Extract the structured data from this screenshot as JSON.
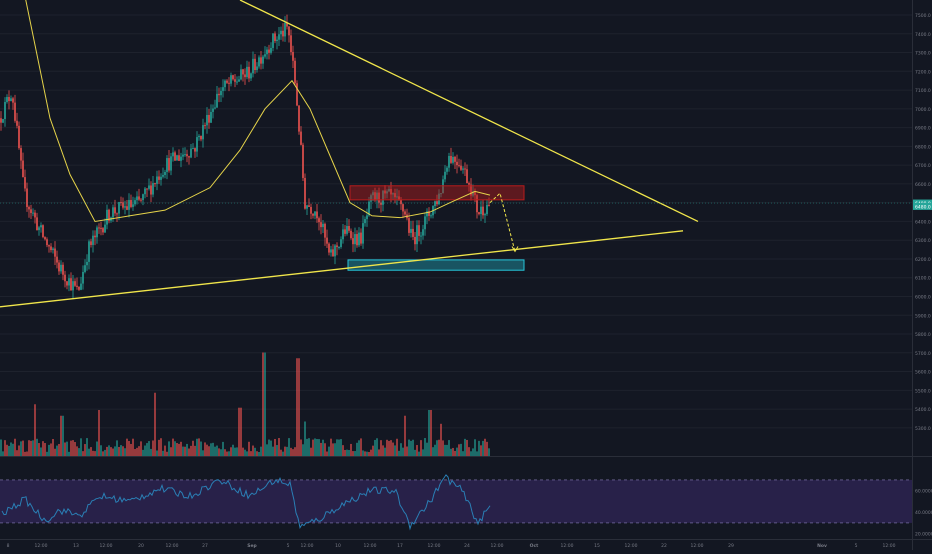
{
  "chart_data": [
    {
      "type": "candlestick",
      "title": "",
      "ylim": [
        5150,
        7580
      ],
      "y_ticks": [
        "7500.0",
        "7400.0",
        "7300.0",
        "7200.0",
        "7100.0",
        "7000.0",
        "6900.0",
        "6800.0",
        "6700.0",
        "6600.0",
        "6500.0",
        "6400.0",
        "6300.0",
        "6200.0",
        "6100.0",
        "6000.0",
        "5900.0",
        "5800.0",
        "5700.0",
        "5600.0",
        "5500.0",
        "5400.0",
        "5300.0"
      ],
      "y_tick_values": [
        7500,
        7400,
        7300,
        7200,
        7100,
        7000,
        6900,
        6800,
        6700,
        6600,
        6500,
        6400,
        6300,
        6200,
        6100,
        6000,
        5900,
        5800,
        5700,
        5600,
        5500,
        5400,
        5300
      ],
      "x_ticks": [
        "8",
        "12:00",
        "13",
        "12:00",
        "20",
        "12:00",
        "27",
        "Sep",
        "5",
        "12:00",
        "10",
        "12:00",
        "17",
        "12:00",
        "24",
        "12:00",
        "Oct",
        "12:00",
        "15",
        "12:00",
        "22",
        "12:00",
        "29",
        "Nov",
        "5",
        "12:00"
      ],
      "price_labels": [
        "6498.0",
        "6480.0"
      ],
      "price_key_points": [
        {
          "x": 0,
          "price": 6950
        },
        {
          "x": 12,
          "price": 7100
        },
        {
          "x": 24,
          "price": 6550
        },
        {
          "x": 40,
          "price": 6350
        },
        {
          "x": 60,
          "price": 6150
        },
        {
          "x": 78,
          "price": 6020
        },
        {
          "x": 88,
          "price": 6250
        },
        {
          "x": 110,
          "price": 6450
        },
        {
          "x": 140,
          "price": 6500
        },
        {
          "x": 165,
          "price": 6700
        },
        {
          "x": 195,
          "price": 6800
        },
        {
          "x": 220,
          "price": 7100
        },
        {
          "x": 250,
          "price": 7200
        },
        {
          "x": 270,
          "price": 7350
        },
        {
          "x": 288,
          "price": 7430
        },
        {
          "x": 296,
          "price": 7100
        },
        {
          "x": 305,
          "price": 6500
        },
        {
          "x": 318,
          "price": 6450
        },
        {
          "x": 330,
          "price": 6200
        },
        {
          "x": 345,
          "price": 6350
        },
        {
          "x": 360,
          "price": 6300
        },
        {
          "x": 372,
          "price": 6520
        },
        {
          "x": 390,
          "price": 6530
        },
        {
          "x": 405,
          "price": 6450
        },
        {
          "x": 412,
          "price": 6300
        },
        {
          "x": 425,
          "price": 6400
        },
        {
          "x": 440,
          "price": 6550
        },
        {
          "x": 448,
          "price": 6750
        },
        {
          "x": 460,
          "price": 6720
        },
        {
          "x": 470,
          "price": 6600
        },
        {
          "x": 478,
          "price": 6450
        },
        {
          "x": 490,
          "price": 6500
        }
      ],
      "ma_points": [
        {
          "x": 25,
          "price": 7600
        },
        {
          "x": 50,
          "price": 6950
        },
        {
          "x": 70,
          "price": 6650
        },
        {
          "x": 95,
          "price": 6400
        },
        {
          "x": 130,
          "price": 6430
        },
        {
          "x": 165,
          "price": 6460
        },
        {
          "x": 210,
          "price": 6580
        },
        {
          "x": 240,
          "price": 6780
        },
        {
          "x": 265,
          "price": 7000
        },
        {
          "x": 292,
          "price": 7150
        },
        {
          "x": 310,
          "price": 7000
        },
        {
          "x": 330,
          "price": 6750
        },
        {
          "x": 350,
          "price": 6500
        },
        {
          "x": 372,
          "price": 6430
        },
        {
          "x": 400,
          "price": 6420
        },
        {
          "x": 430,
          "price": 6450
        },
        {
          "x": 450,
          "price": 6500
        },
        {
          "x": 475,
          "price": 6560
        },
        {
          "x": 490,
          "price": 6540
        }
      ],
      "trendlines": [
        {
          "from": {
            "x": 240,
            "price": 7580
          },
          "to": {
            "x": 698,
            "price": 6400
          }
        },
        {
          "from": {
            "x": 0,
            "price": 5945
          },
          "to": {
            "x": 683,
            "price": 6350
          }
        }
      ],
      "zones": [
        {
          "name": "resistance",
          "x_from": 350,
          "x_to": 524,
          "price_top": 6590,
          "price_bottom": 6515,
          "color": "#b71c1c"
        },
        {
          "name": "support",
          "x_from": 348,
          "x_to": 524,
          "price_top": 6195,
          "price_bottom": 6140,
          "color": "#26c6da"
        }
      ],
      "projection_path": [
        {
          "x": 490,
          "price": 6500
        },
        {
          "x": 500,
          "price": 6550
        },
        {
          "x": 515,
          "price": 6240
        }
      ]
    },
    {
      "type": "bar",
      "name": "volume",
      "y_ticks": [
        "5300.0"
      ],
      "note_values": "relative volume heights 0-1 across the same time axis",
      "spikes": [
        {
          "x": 35,
          "value": 0.45
        },
        {
          "x": 62,
          "value": 0.35
        },
        {
          "x": 99,
          "value": 0.4
        },
        {
          "x": 155,
          "value": 0.55
        },
        {
          "x": 240,
          "value": 0.42
        },
        {
          "x": 264,
          "value": 0.9
        },
        {
          "x": 298,
          "value": 0.85
        },
        {
          "x": 305,
          "value": 0.3
        },
        {
          "x": 405,
          "value": 0.35
        },
        {
          "x": 430,
          "value": 0.4
        },
        {
          "x": 441,
          "value": 0.28
        }
      ]
    },
    {
      "type": "line",
      "name": "rsi",
      "y_ticks": [
        "60.0000",
        "40.0000",
        "20.0000"
      ],
      "y_tick_values": [
        60,
        40,
        20
      ],
      "ylim": [
        16,
        82
      ],
      "band": [
        30,
        70
      ],
      "points": [
        {
          "x": 2,
          "value": 38
        },
        {
          "x": 25,
          "value": 52
        },
        {
          "x": 45,
          "value": 32
        },
        {
          "x": 60,
          "value": 42
        },
        {
          "x": 80,
          "value": 37
        },
        {
          "x": 100,
          "value": 55
        },
        {
          "x": 130,
          "value": 50
        },
        {
          "x": 160,
          "value": 62
        },
        {
          "x": 190,
          "value": 55
        },
        {
          "x": 220,
          "value": 70
        },
        {
          "x": 250,
          "value": 55
        },
        {
          "x": 275,
          "value": 70
        },
        {
          "x": 290,
          "value": 66
        },
        {
          "x": 300,
          "value": 26
        },
        {
          "x": 320,
          "value": 34
        },
        {
          "x": 340,
          "value": 46
        },
        {
          "x": 370,
          "value": 60
        },
        {
          "x": 395,
          "value": 60
        },
        {
          "x": 410,
          "value": 28
        },
        {
          "x": 430,
          "value": 50
        },
        {
          "x": 445,
          "value": 73
        },
        {
          "x": 462,
          "value": 60
        },
        {
          "x": 478,
          "value": 30
        },
        {
          "x": 490,
          "value": 45
        }
      ]
    }
  ],
  "colors": {
    "background": "#131722",
    "up": "#26a69a",
    "down": "#ef5350",
    "ma": "#e6d44a",
    "trend": "#f1e64b",
    "rsi_line": "#2a7fb5",
    "rsi_band": "#3a2a6a",
    "grid": "#1e222d",
    "text": "#787b86",
    "price_line": "#26a69a"
  }
}
